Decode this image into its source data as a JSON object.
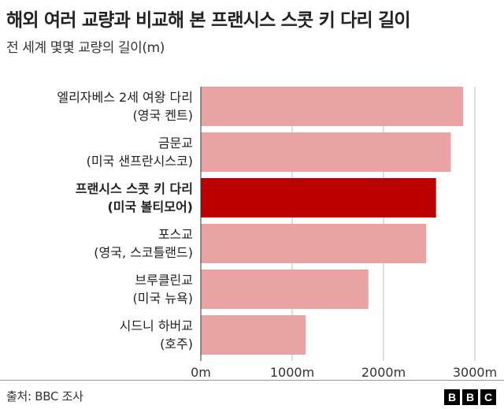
{
  "header": {
    "title": "해외 여러 교량과 비교해 본 프랜시스 스콧 키 다리 길이",
    "subtitle": "전 세계 몇몇 교량의 길이(m)"
  },
  "footer": {
    "source": "출처: BBC 조사",
    "logo": [
      "B",
      "B",
      "C"
    ]
  },
  "colors": {
    "bar": "#e9a3a3",
    "highlight": "#bb0000",
    "grid": "#bbbbbb"
  },
  "chart_data": {
    "type": "bar",
    "orientation": "horizontal",
    "title": "해외 여러 교량과 비교해 본 프랜시스 스콧 키 다리 길이",
    "subtitle": "전 세계 몇몇 교량의 길이(m)",
    "categories": [
      [
        "엘리자베스 2세 여왕 다리",
        "(영국 켄트)"
      ],
      [
        "금문교",
        "(미국 샌프란시스코)"
      ],
      [
        "프랜시스 스콧 키 다리",
        "(미국 볼티모어)"
      ],
      [
        "포스교",
        "(영국, 스코틀랜드)"
      ],
      [
        "브루클린교",
        "(미국 뉴욕)"
      ],
      [
        "시드니 하버교",
        "(호주)"
      ]
    ],
    "values": [
      2872,
      2737,
      2575,
      2467,
      1834,
      1149
    ],
    "highlight_index": 2,
    "xlim": [
      0,
      3000
    ],
    "xticks": [
      0,
      1000,
      2000,
      3000
    ],
    "xtick_labels": [
      "0m",
      "1000m",
      "2000m",
      "3000m"
    ],
    "grid": true
  }
}
